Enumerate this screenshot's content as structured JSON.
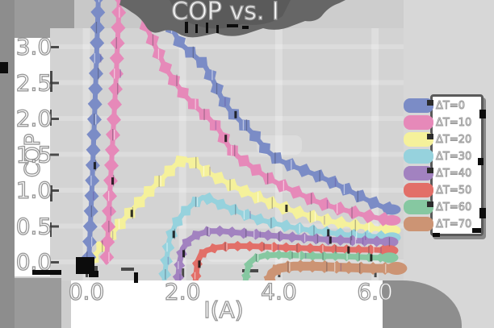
{
  "title": "COP vs. I",
  "axes": {
    "xlabel": "I(A)",
    "ylabel": "COP",
    "x_ticks": [
      "0.0",
      "2.0",
      "4.0",
      "6.0"
    ],
    "x_tick_values": [
      0,
      2,
      4,
      6
    ],
    "y_ticks": [
      "0.0",
      "0.5",
      "1.0",
      "1.5",
      "2.0",
      "2.5",
      "3.0"
    ],
    "y_tick_values": [
      0,
      0.5,
      1,
      1.5,
      2,
      2.5,
      3
    ],
    "xlim": [
      -0.75,
      6.6
    ],
    "ylim": [
      -0.26,
      3.26
    ],
    "grid": true
  },
  "legend": {
    "position": "right",
    "entries": [
      "ΔT=0",
      "ΔT=10",
      "ΔT=20",
      "ΔT=30",
      "ΔT=40",
      "ΔT=50",
      "ΔT=60",
      "ΔT=70"
    ]
  },
  "colors": {
    "figure_bg": "#cdcdcd",
    "plot_bg": "#d3d3d3",
    "label_panel": "#ffffff",
    "text": "#ffffff",
    "text_outline": "#919191",
    "title_blob": "#666666",
    "axis_sketch": "#3c3c3c"
  },
  "chart_data": {
    "type": "line",
    "title": "COP vs. I",
    "xlabel": "I(A)",
    "ylabel": "COP",
    "xlim": [
      -0.75,
      6.6
    ],
    "ylim": [
      -0.26,
      3.26
    ],
    "note": "ΔT=0 and ΔT=10 peaks exceed the visible axis top (clipped above COP≈3.3)",
    "series": [
      {
        "name": "ΔT=0",
        "color": "#7b8cc6",
        "points": [
          [
            0.05,
            0
          ],
          [
            0.12,
            1.1
          ],
          [
            0.2,
            2.6
          ],
          [
            0.26,
            3.9
          ],
          [
            1.5,
            3.9
          ],
          [
            1.7,
            3.35
          ],
          [
            1.95,
            3.05
          ],
          [
            2.2,
            2.9
          ],
          [
            2.45,
            2.75
          ],
          [
            2.62,
            2.55
          ],
          [
            2.8,
            2.3
          ],
          [
            3.0,
            2.1
          ],
          [
            3.25,
            1.93
          ],
          [
            3.5,
            1.76
          ],
          [
            3.75,
            1.55
          ],
          [
            4.0,
            1.42
          ],
          [
            4.35,
            1.32
          ],
          [
            4.75,
            1.22
          ],
          [
            5.15,
            1.1
          ],
          [
            5.5,
            0.98
          ],
          [
            5.85,
            0.86
          ],
          [
            6.15,
            0.77
          ],
          [
            6.35,
            0.73
          ]
        ]
      },
      {
        "name": "ΔT=10",
        "color": "#e689b9",
        "points": [
          [
            0.42,
            0
          ],
          [
            0.5,
            1.1
          ],
          [
            0.62,
            2.6
          ],
          [
            0.7,
            3.9
          ],
          [
            1.05,
            3.9
          ],
          [
            1.2,
            3.35
          ],
          [
            1.45,
            2.98
          ],
          [
            1.65,
            2.7
          ],
          [
            1.85,
            2.5
          ],
          [
            2.05,
            2.32
          ],
          [
            2.3,
            2.15
          ],
          [
            2.55,
            2.0
          ],
          [
            2.75,
            1.85
          ],
          [
            2.95,
            1.62
          ],
          [
            3.15,
            1.47
          ],
          [
            3.45,
            1.32
          ],
          [
            3.75,
            1.18
          ],
          [
            4.05,
            1.07
          ],
          [
            4.4,
            0.96
          ],
          [
            4.75,
            0.85
          ],
          [
            5.1,
            0.77
          ],
          [
            5.5,
            0.7
          ],
          [
            5.85,
            0.64
          ],
          [
            6.15,
            0.6
          ],
          [
            6.35,
            0.58
          ]
        ]
      },
      {
        "name": "ΔT=20",
        "color": "#f5f19b",
        "points": [
          [
            0.08,
            0
          ],
          [
            0.3,
            0.2
          ],
          [
            0.6,
            0.45
          ],
          [
            0.95,
            0.72
          ],
          [
            1.3,
            0.98
          ],
          [
            1.6,
            1.18
          ],
          [
            1.85,
            1.35
          ],
          [
            2.02,
            1.43
          ],
          [
            2.2,
            1.4
          ],
          [
            2.4,
            1.3
          ],
          [
            2.6,
            1.22
          ],
          [
            2.85,
            1.13
          ],
          [
            3.1,
            1.04
          ],
          [
            3.4,
            0.95
          ],
          [
            3.7,
            0.86
          ],
          [
            4.0,
            0.78
          ],
          [
            4.35,
            0.7
          ],
          [
            4.7,
            0.63
          ],
          [
            5.05,
            0.57
          ],
          [
            5.45,
            0.52
          ],
          [
            5.85,
            0.48
          ],
          [
            6.2,
            0.45
          ],
          [
            6.35,
            0.44
          ]
        ]
      },
      {
        "name": "ΔT=30",
        "color": "#96d2dd",
        "points": [
          [
            1.62,
            -0.24
          ],
          [
            1.66,
            0.0
          ],
          [
            1.72,
            0.3
          ],
          [
            1.85,
            0.52
          ],
          [
            2.0,
            0.67
          ],
          [
            2.2,
            0.8
          ],
          [
            2.42,
            0.9
          ],
          [
            2.6,
            0.87
          ],
          [
            2.8,
            0.8
          ],
          [
            3.05,
            0.73
          ],
          [
            3.3,
            0.66
          ],
          [
            3.6,
            0.59
          ],
          [
            3.95,
            0.53
          ],
          [
            4.3,
            0.48
          ],
          [
            4.65,
            0.44
          ],
          [
            5.0,
            0.41
          ],
          [
            5.4,
            0.38
          ],
          [
            5.8,
            0.36
          ],
          [
            6.15,
            0.35
          ],
          [
            6.35,
            0.34
          ]
        ]
      },
      {
        "name": "ΔT=40",
        "color": "#a282c0",
        "points": [
          [
            1.9,
            -0.28
          ],
          [
            1.94,
            0.0
          ],
          [
            2.0,
            0.18
          ],
          [
            2.12,
            0.3
          ],
          [
            2.3,
            0.38
          ],
          [
            2.55,
            0.43
          ],
          [
            2.8,
            0.43
          ],
          [
            3.1,
            0.41
          ],
          [
            3.45,
            0.39
          ],
          [
            3.8,
            0.37
          ],
          [
            4.2,
            0.35
          ],
          [
            4.6,
            0.33
          ],
          [
            5.0,
            0.31
          ],
          [
            5.45,
            0.3
          ],
          [
            5.9,
            0.29
          ],
          [
            6.3,
            0.28
          ]
        ]
      },
      {
        "name": "ΔT=50",
        "color": "#e26f68",
        "points": [
          [
            2.27,
            -0.26
          ],
          [
            2.31,
            0.0
          ],
          [
            2.38,
            0.1
          ],
          [
            2.5,
            0.16
          ],
          [
            2.7,
            0.2
          ],
          [
            3.0,
            0.22
          ],
          [
            3.35,
            0.22
          ],
          [
            3.75,
            0.21
          ],
          [
            4.15,
            0.2
          ],
          [
            4.6,
            0.19
          ],
          [
            5.05,
            0.18
          ],
          [
            5.5,
            0.17
          ],
          [
            5.95,
            0.17
          ],
          [
            6.3,
            0.16
          ]
        ]
      },
      {
        "name": "ΔT=60",
        "color": "#86c8a1",
        "points": [
          [
            3.28,
            -0.42
          ],
          [
            3.32,
            -0.2
          ],
          [
            3.38,
            -0.02
          ],
          [
            3.5,
            0.05
          ],
          [
            3.7,
            0.09
          ],
          [
            4.0,
            0.1
          ],
          [
            4.4,
            0.09
          ],
          [
            4.8,
            0.08
          ],
          [
            5.2,
            0.08
          ],
          [
            5.6,
            0.07
          ],
          [
            6.0,
            0.06
          ],
          [
            6.3,
            0.06
          ]
        ]
      },
      {
        "name": "ΔT=70",
        "color": "#cc9474",
        "points": [
          [
            3.78,
            -0.3
          ],
          [
            3.85,
            -0.16
          ],
          [
            4.0,
            -0.09
          ],
          [
            4.3,
            -0.06
          ],
          [
            4.7,
            -0.06
          ],
          [
            5.1,
            -0.07
          ],
          [
            5.5,
            -0.08
          ],
          [
            5.9,
            -0.09
          ],
          [
            6.3,
            -0.09
          ],
          [
            6.45,
            -0.09
          ]
        ]
      }
    ]
  }
}
